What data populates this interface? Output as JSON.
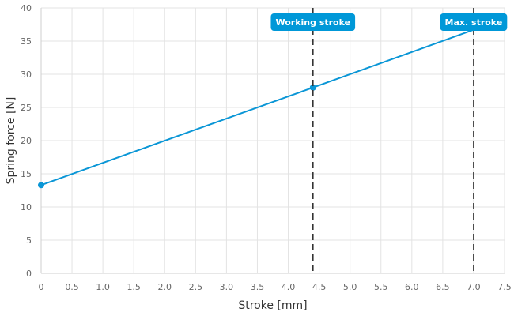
{
  "chart_data": {
    "type": "line",
    "xlabel": "Stroke [mm]",
    "ylabel": "Spring force [N]",
    "xlim": [
      0,
      7.5
    ],
    "ylim": [
      0,
      40
    ],
    "x_ticks": [
      "0",
      "0.5",
      "1.0",
      "1.5",
      "2.0",
      "2.5",
      "3.0",
      "3.5",
      "4.0",
      "4.5",
      "5.0",
      "5.5",
      "6.0",
      "6.5",
      "7.0",
      "7.5"
    ],
    "y_ticks": [
      "0",
      "5",
      "10",
      "15",
      "20",
      "25",
      "30",
      "35",
      "40"
    ],
    "grid": true,
    "legend": "none",
    "series": [
      {
        "color": "#0a96d6",
        "x": [
          0,
          4.4,
          7.0
        ],
        "y": [
          13.3,
          28.0,
          36.7
        ],
        "markers": [
          true,
          true,
          false
        ]
      }
    ],
    "reference_lines": [
      {
        "x": 4.4,
        "label": "Working stroke"
      },
      {
        "x": 7.0,
        "label": "Max. stroke"
      }
    ],
    "accent_color": "#0098d8"
  }
}
